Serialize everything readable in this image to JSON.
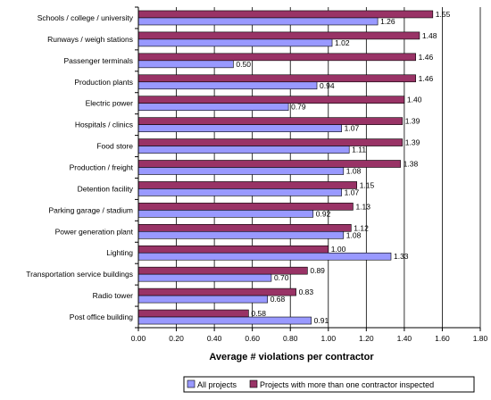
{
  "chart_data": {
    "type": "bar",
    "orientation": "horizontal",
    "categories": [
      "Schools / college / university",
      "Runways / weigh stations",
      "Passenger terminals",
      "Production plants",
      "Electric power",
      "Hospitals / clinics",
      "Food store",
      "Production / freight",
      "Detention facility",
      "Parking garage / stadium",
      "Power generation plant",
      "Lighting",
      "Transportation service buildings",
      "Radio tower",
      "Post office building"
    ],
    "series": [
      {
        "name": "Projects with more than one contractor inspected",
        "color": "#993366",
        "values": [
          1.55,
          1.48,
          1.46,
          1.46,
          1.4,
          1.39,
          1.39,
          1.38,
          1.15,
          1.13,
          1.12,
          1.0,
          0.89,
          0.83,
          0.58
        ],
        "labels": [
          "1.55",
          "1.48",
          "1.46",
          "1.46",
          "1.40",
          "1.39",
          "1.39",
          "1.38",
          "1.15",
          "1.13",
          "1.12",
          "1.00",
          "0.89",
          "0.83",
          "0.58"
        ]
      },
      {
        "name": "All projects",
        "color": "#9999ff",
        "values": [
          1.26,
          1.02,
          0.5,
          0.94,
          0.79,
          1.07,
          1.11,
          1.08,
          1.07,
          0.92,
          1.08,
          1.33,
          0.7,
          0.68,
          0.91
        ],
        "labels": [
          "1.26",
          "1.02",
          "0.50",
          "0.94",
          "0.79",
          "1.07",
          "1.11",
          "1.08",
          "1.07",
          "0.92",
          "1.08",
          "1.33",
          "0.70",
          "0.68",
          "0.91"
        ]
      }
    ],
    "xlim": [
      0,
      1.8
    ],
    "x_ticks": [
      "0.00",
      "0.20",
      "0.40",
      "0.60",
      "0.80",
      "1.00",
      "1.20",
      "1.40",
      "1.60",
      "1.80"
    ],
    "xlabel": "Average # violations per contractor",
    "ylabel": "",
    "title": "",
    "grid": "vertical",
    "legend": {
      "placement": "bottom",
      "entries": [
        "All projects",
        "Projects with more than one contractor inspected"
      ]
    }
  }
}
